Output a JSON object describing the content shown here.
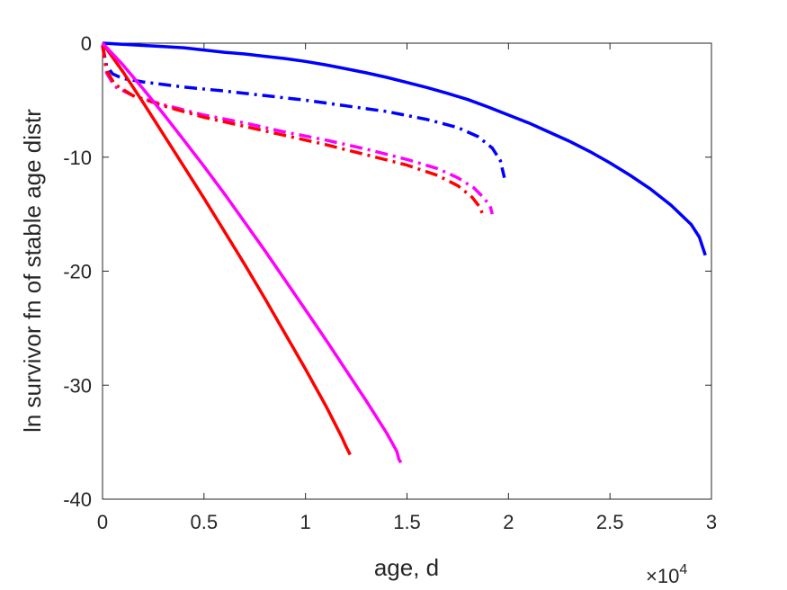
{
  "chart_data": {
    "type": "line",
    "title": "",
    "xlabel": "age, d",
    "ylabel": "ln survivor fn of stable age distr",
    "x_exponent_label": "×10",
    "x_exponent_power": "4",
    "xlim": [
      0,
      30000
    ],
    "ylim": [
      -40,
      0
    ],
    "x_ticks": [
      0,
      5000,
      10000,
      15000,
      20000,
      25000,
      30000
    ],
    "x_tick_labels": [
      "0",
      "0.5",
      "1",
      "1.5",
      "2",
      "2.5",
      "3"
    ],
    "y_ticks": [
      0,
      -10,
      -20,
      -30,
      -40
    ],
    "y_tick_labels": [
      "0",
      "-10",
      "-20",
      "-30",
      "-40"
    ],
    "grid": false,
    "series": [
      {
        "color": "#0000ff",
        "style": "solid",
        "points": [
          [
            0,
            0
          ],
          [
            1000,
            -0.1
          ],
          [
            2000,
            -0.2
          ],
          [
            3000,
            -0.3
          ],
          [
            4000,
            -0.4
          ],
          [
            5000,
            -0.6
          ],
          [
            6000,
            -0.8
          ],
          [
            7000,
            -0.95
          ],
          [
            8000,
            -1.15
          ],
          [
            9000,
            -1.35
          ],
          [
            10000,
            -1.6
          ],
          [
            11000,
            -1.9
          ],
          [
            12000,
            -2.25
          ],
          [
            13000,
            -2.6
          ],
          [
            14000,
            -3.0
          ],
          [
            15000,
            -3.45
          ],
          [
            16000,
            -3.9
          ],
          [
            17000,
            -4.4
          ],
          [
            18000,
            -4.95
          ],
          [
            19000,
            -5.6
          ],
          [
            20000,
            -6.3
          ],
          [
            21000,
            -7.0
          ],
          [
            22000,
            -7.8
          ],
          [
            23000,
            -8.6
          ],
          [
            24000,
            -9.5
          ],
          [
            25000,
            -10.5
          ],
          [
            26000,
            -11.6
          ],
          [
            27000,
            -12.8
          ],
          [
            28000,
            -14.2
          ],
          [
            29000,
            -15.9
          ],
          [
            29400,
            -17.0
          ],
          [
            29700,
            -18.6
          ]
        ]
      },
      {
        "color": "#0000ff",
        "style": "dashdot",
        "points": [
          [
            0,
            -0.2
          ],
          [
            200,
            -2.0
          ],
          [
            500,
            -2.7
          ],
          [
            1000,
            -3.1
          ],
          [
            2000,
            -3.4
          ],
          [
            4000,
            -3.85
          ],
          [
            6000,
            -4.2
          ],
          [
            8000,
            -4.6
          ],
          [
            10000,
            -5.0
          ],
          [
            12000,
            -5.5
          ],
          [
            14000,
            -6.0
          ],
          [
            16000,
            -6.7
          ],
          [
            17500,
            -7.4
          ],
          [
            18500,
            -8.2
          ],
          [
            19200,
            -9.2
          ],
          [
            19600,
            -10.3
          ],
          [
            19800,
            -11.8
          ]
        ]
      },
      {
        "color": "#ff00ff",
        "style": "dashdot",
        "points": [
          [
            0,
            -0.2
          ],
          [
            200,
            -2.6
          ],
          [
            600,
            -3.8
          ],
          [
            1500,
            -4.6
          ],
          [
            3000,
            -5.4
          ],
          [
            5000,
            -6.3
          ],
          [
            7000,
            -7.0
          ],
          [
            9000,
            -7.8
          ],
          [
            11000,
            -8.5
          ],
          [
            13000,
            -9.3
          ],
          [
            15000,
            -10.2
          ],
          [
            16500,
            -11.0
          ],
          [
            17500,
            -11.8
          ],
          [
            18300,
            -12.7
          ],
          [
            18800,
            -13.6
          ],
          [
            19100,
            -14.3
          ],
          [
            19200,
            -15.0
          ]
        ]
      },
      {
        "color": "#ff0000",
        "style": "dashdot",
        "points": [
          [
            0,
            -0.2
          ],
          [
            200,
            -2.4
          ],
          [
            600,
            -3.6
          ],
          [
            1500,
            -4.6
          ],
          [
            3000,
            -5.5
          ],
          [
            5000,
            -6.5
          ],
          [
            7000,
            -7.3
          ],
          [
            9000,
            -8.1
          ],
          [
            11000,
            -8.9
          ],
          [
            13000,
            -9.8
          ],
          [
            15000,
            -10.7
          ],
          [
            16500,
            -11.6
          ],
          [
            17500,
            -12.5
          ],
          [
            18200,
            -13.5
          ],
          [
            18600,
            -14.4
          ],
          [
            18700,
            -14.9
          ]
        ]
      },
      {
        "color": "#ff0000",
        "style": "solid",
        "points": [
          [
            0,
            0
          ],
          [
            1000,
            -2.5
          ],
          [
            2000,
            -5.2
          ],
          [
            3000,
            -8.0
          ],
          [
            4000,
            -10.8
          ],
          [
            5000,
            -13.6
          ],
          [
            6000,
            -16.5
          ],
          [
            7000,
            -19.4
          ],
          [
            8000,
            -22.4
          ],
          [
            9000,
            -25.5
          ],
          [
            10000,
            -28.6
          ],
          [
            11000,
            -31.8
          ],
          [
            11800,
            -34.6
          ],
          [
            12000,
            -35.4
          ],
          [
            12200,
            -36.1
          ]
        ]
      },
      {
        "color": "#ff00ff",
        "style": "solid",
        "points": [
          [
            0,
            0
          ],
          [
            1000,
            -1.9
          ],
          [
            2000,
            -4.0
          ],
          [
            3000,
            -6.2
          ],
          [
            4000,
            -8.5
          ],
          [
            5000,
            -10.8
          ],
          [
            6000,
            -13.2
          ],
          [
            7000,
            -15.7
          ],
          [
            8000,
            -18.2
          ],
          [
            9000,
            -20.8
          ],
          [
            10000,
            -23.4
          ],
          [
            11000,
            -26.0
          ],
          [
            12000,
            -28.7
          ],
          [
            13000,
            -31.4
          ],
          [
            14000,
            -34.2
          ],
          [
            14500,
            -35.8
          ],
          [
            14600,
            -36.5
          ],
          [
            14700,
            -36.8
          ]
        ]
      }
    ]
  }
}
